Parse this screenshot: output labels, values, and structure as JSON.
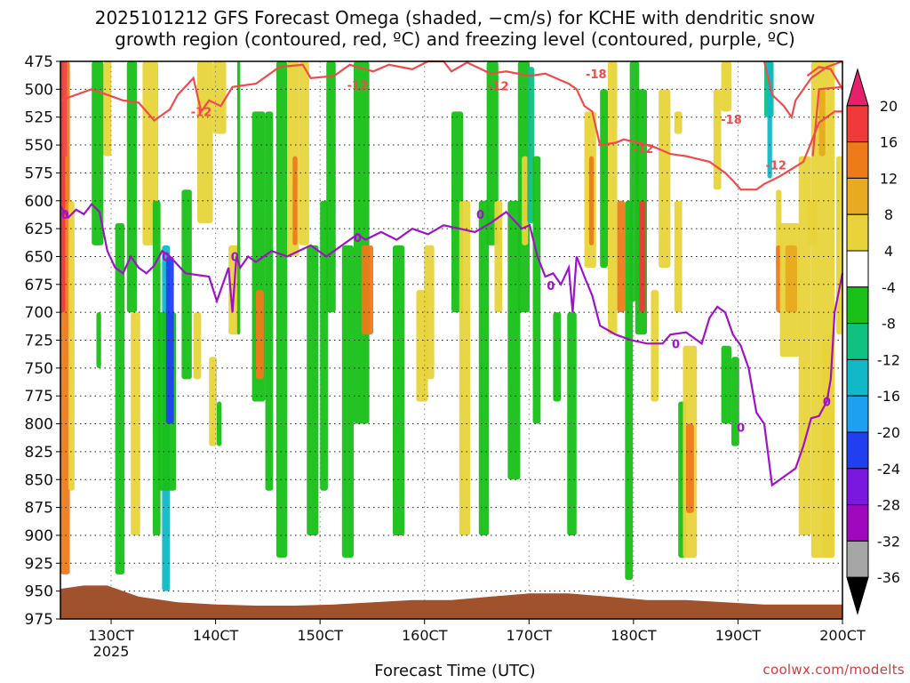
{
  "title_line1": "2025101212 GFS Forecast Omega (shaded, −cm/s) for KCHE with dendritic snow",
  "title_line2": "growth region (contoured, red, ºC) and freezing level (contoured, purple, ºC)",
  "xlabel": "Forecast Time (UTC)",
  "credit": "coolwx.com/modelts",
  "chart_data": {
    "type": "heatmap",
    "x_axis": {
      "range": [
        "2025-10-12 12Z",
        "2025-10-20 00Z"
      ],
      "ticks": [
        "130CT",
        "140CT",
        "150CT",
        "160CT",
        "170CT",
        "180CT",
        "190CT",
        "200CT"
      ],
      "tick_sublabel": "2025"
    },
    "y_axis": {
      "label_units": "hPa",
      "range": [
        475,
        975
      ],
      "ticks": [
        475,
        500,
        525,
        550,
        575,
        600,
        625,
        650,
        675,
        700,
        725,
        750,
        775,
        800,
        825,
        850,
        875,
        900,
        925,
        950,
        975
      ]
    },
    "grid": true,
    "colorbar": {
      "labels": [
        20,
        16,
        12,
        8,
        4,
        -4,
        -8,
        -12,
        -16,
        -20,
        -24,
        -28,
        -32,
        -36
      ],
      "colors": [
        "#e8206b",
        "#f03a3a",
        "#ee7a1a",
        "#e8aa20",
        "#e8d43a",
        "#ffffff",
        "#18c018",
        "#10c080",
        "#10b8c8",
        "#1ea0f0",
        "#2040f0",
        "#7a18e0",
        "#a008c0",
        "#a6a6a6",
        "#000000"
      ]
    },
    "contour_labels": {
      "dendritic_red": [
        "-12",
        "-18"
      ],
      "freezing_purple": [
        "0"
      ]
    },
    "colors": {
      "dendritic_line": "#f04a4a",
      "freezing_line": "#a012c8",
      "terrain": "#a0522d"
    }
  }
}
